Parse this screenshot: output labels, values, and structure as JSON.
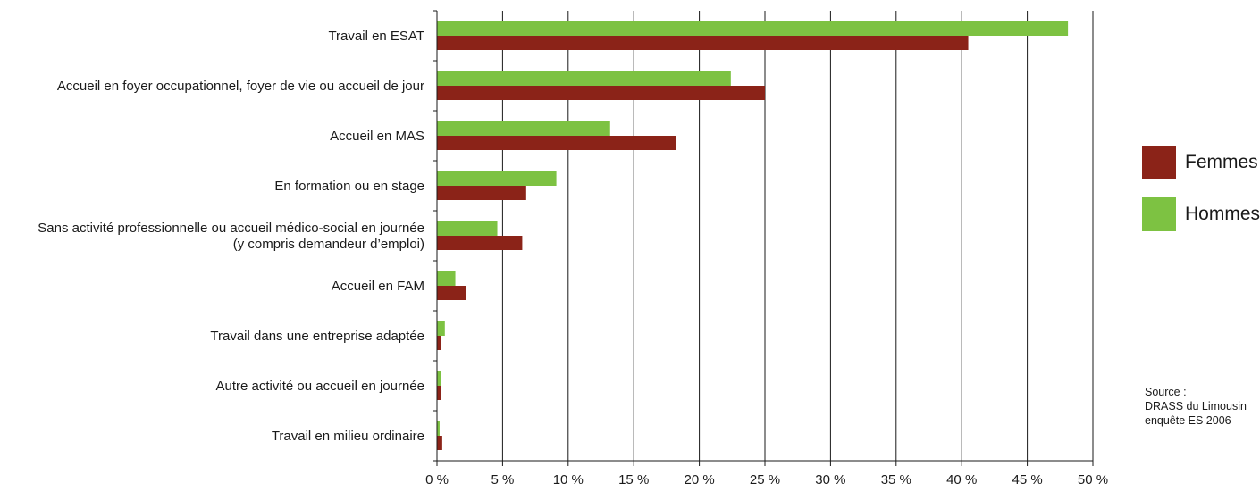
{
  "chart_data": {
    "type": "bar",
    "orientation": "horizontal",
    "categories": [
      [
        "Travail en ESAT"
      ],
      [
        "Accueil en foyer occupationnel, foyer de vie ou accueil de jour"
      ],
      [
        "Accueil en MAS"
      ],
      [
        "En formation ou en stage"
      ],
      [
        "Sans activité professionnelle ou accueil médico-social en journée",
        "(y compris demandeur d’emploi)"
      ],
      [
        "Accueil en FAM"
      ],
      [
        "Travail dans une entreprise adaptée"
      ],
      [
        "Autre activité ou accueil en journée"
      ],
      [
        "Travail en milieu ordinaire"
      ]
    ],
    "series": [
      {
        "name": "Hommes",
        "color": "#7dc242",
        "values": [
          48.1,
          22.4,
          13.2,
          9.1,
          4.6,
          1.4,
          0.6,
          0.3,
          0.2
        ]
      },
      {
        "name": "Femmes",
        "color": "#8b2318",
        "values": [
          40.5,
          25.0,
          18.2,
          6.8,
          6.5,
          2.2,
          0.3,
          0.3,
          0.4
        ]
      }
    ],
    "xlim": [
      0,
      50
    ],
    "xticks": [
      0,
      5,
      10,
      15,
      20,
      25,
      30,
      35,
      40,
      45,
      50
    ],
    "xtick_labels": [
      "0 %",
      "5 %",
      "10 %",
      "15 %",
      "20 %",
      "25 %",
      "30 %",
      "35 %",
      "40 %",
      "45 %",
      "50 %"
    ],
    "grid": true,
    "legend_position": "right",
    "title": "",
    "xlabel": "",
    "ylabel": ""
  },
  "legend": [
    {
      "label": "Femmes",
      "color": "#8b2318"
    },
    {
      "label": "Hommes",
      "color": "#7dc242"
    }
  ],
  "source": {
    "line1": "Source :",
    "line2": "DRASS du Limousin",
    "line3": "enquête ES 2006"
  }
}
